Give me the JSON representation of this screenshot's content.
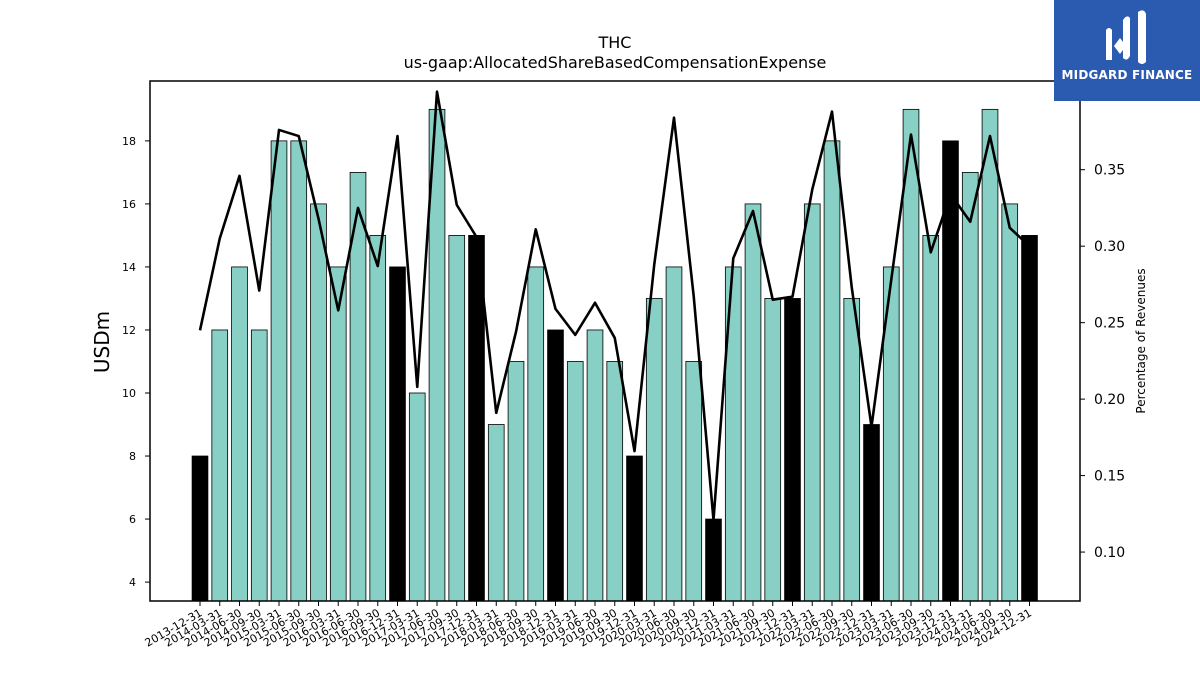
{
  "logo": {
    "text": "MIDGARD FINANCE"
  },
  "chart_data": {
    "type": "bar",
    "title": "THC",
    "subtitle": "us-gaap:AllocatedShareBasedCompensationExpense",
    "ylabel": "USDm",
    "ylabel_right": "Percentage of Revenues",
    "ylim": [
      3.4,
      19.9
    ],
    "ylim_right": [
      0.068,
      0.408
    ],
    "yticks": [
      4,
      6,
      8,
      10,
      12,
      14,
      16,
      18
    ],
    "yticks_right": [
      "0.10",
      "0.15",
      "0.20",
      "0.25",
      "0.30",
      "0.35"
    ],
    "categories": [
      "2013-12-31",
      "2014-03-31",
      "2014-06-30",
      "2014-09-30",
      "2015-03-31",
      "2015-06-30",
      "2015-09-30",
      "2016-03-31",
      "2016-06-30",
      "2016-09-30",
      "2016-12-31",
      "2017-03-31",
      "2017-06-30",
      "2017-09-30",
      "2017-12-31",
      "2018-03-31",
      "2018-06-30",
      "2018-09-30",
      "2018-12-31",
      "2019-03-31",
      "2019-06-30",
      "2019-09-30",
      "2019-12-31",
      "2020-03-31",
      "2020-06-30",
      "2020-09-30",
      "2020-12-31",
      "2021-03-31",
      "2021-06-30",
      "2021-09-30",
      "2021-12-31",
      "2022-03-31",
      "2022-06-30",
      "2022-09-30",
      "2022-12-31",
      "2023-03-31",
      "2023-06-30",
      "2023-09-30",
      "2023-12-31",
      "2024-03-31",
      "2024-06-30",
      "2024-09-30",
      "2024-12-31"
    ],
    "values": [
      8,
      12,
      14,
      12,
      18,
      18,
      16,
      14,
      17,
      15,
      14,
      10,
      19,
      15,
      15,
      9,
      11,
      14,
      12,
      11,
      12,
      11,
      8,
      13,
      14,
      11,
      6,
      14,
      16,
      13,
      13,
      16,
      18,
      13,
      9,
      14,
      19,
      15,
      18,
      17,
      19,
      16,
      15
    ],
    "highlight": [
      true,
      false,
      false,
      false,
      false,
      false,
      false,
      false,
      false,
      false,
      true,
      false,
      false,
      false,
      true,
      false,
      false,
      false,
      true,
      false,
      false,
      false,
      true,
      false,
      false,
      false,
      true,
      false,
      false,
      false,
      true,
      false,
      false,
      false,
      true,
      false,
      false,
      false,
      true,
      false,
      false,
      false,
      true
    ],
    "line": [
      0.245,
      0.305,
      0.346,
      0.271,
      0.376,
      0.372,
      0.318,
      0.258,
      0.325,
      0.287,
      0.372,
      0.208,
      0.401,
      0.327,
      0.306,
      0.191,
      0.244,
      0.311,
      0.259,
      0.242,
      0.263,
      0.24,
      0.166,
      0.288,
      0.384,
      0.267,
      0.121,
      0.292,
      0.323,
      0.265,
      0.267,
      0.337,
      0.388,
      0.273,
      0.182,
      0.278,
      0.373,
      0.296,
      0.334,
      0.316,
      0.372,
      0.312,
      0.3
    ],
    "colors": {
      "bar": "#88d0c5",
      "highlight": "#000000",
      "edge": "#000000",
      "line": "#000000"
    }
  }
}
